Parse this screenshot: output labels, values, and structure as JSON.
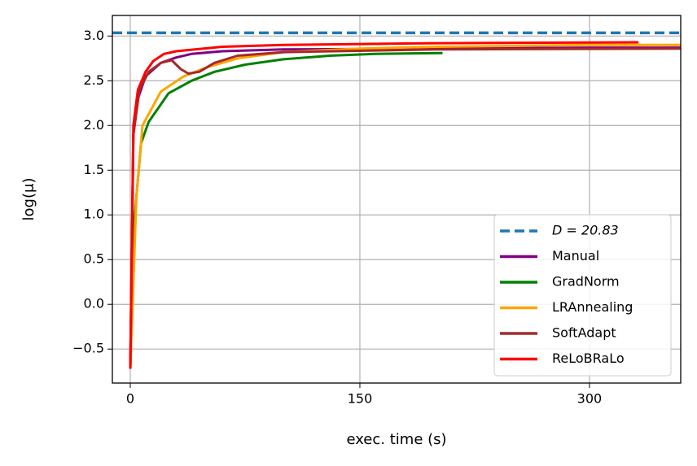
{
  "chart_data": {
    "type": "line",
    "xlabel": "exec. time (s)",
    "ylabel": "log(μ)",
    "xlim": [
      -11.7,
      359.6
    ],
    "ylim": [
      -0.88,
      3.23
    ],
    "xticks": [
      0,
      150,
      300
    ],
    "yticks": [
      {
        "value": -0.5,
        "label": "−0.5"
      },
      {
        "value": 0,
        "label": "0.0"
      },
      0.5,
      {
        "value": 1,
        "label": "1.0"
      },
      1.5,
      {
        "value": 2,
        "label": "2.0"
      },
      2.5,
      {
        "value": 3,
        "label": "3.0"
      }
    ],
    "grid": true,
    "legend": "lower right",
    "reference_line": {
      "name": "D = 20.83",
      "value": 3.036,
      "color": "#1f77b4"
    },
    "series": [
      {
        "name": "Manual",
        "color": "#800080",
        "x": [
          0,
          2,
          5,
          10,
          20,
          30,
          40,
          60,
          100,
          200,
          300,
          359.6
        ],
        "values": [
          -0.72,
          1.9,
          2.3,
          2.55,
          2.7,
          2.76,
          2.8,
          2.83,
          2.85,
          2.86,
          2.87,
          2.87
        ]
      },
      {
        "name": "GradNorm",
        "color": "#008000",
        "x": [
          0,
          3,
          7,
          12,
          25,
          40,
          55,
          75,
          100,
          130,
          160,
          204
        ],
        "values": [
          -0.72,
          1.0,
          1.8,
          2.04,
          2.36,
          2.5,
          2.6,
          2.68,
          2.74,
          2.78,
          2.8,
          2.81
        ]
      },
      {
        "name": "LRAnnealing",
        "color": "#ffa500",
        "x": [
          0,
          4,
          8,
          20,
          35,
          50,
          70,
          100,
          150,
          200,
          300,
          359.6
        ],
        "values": [
          -0.72,
          1.2,
          2.0,
          2.38,
          2.55,
          2.65,
          2.75,
          2.82,
          2.86,
          2.88,
          2.9,
          2.9
        ]
      },
      {
        "name": "SoftAdapt",
        "color": "#a52a2a",
        "x": [
          0,
          2,
          6,
          12,
          20,
          27,
          33,
          38,
          45,
          55,
          70,
          100,
          200,
          359.6
        ],
        "values": [
          -0.72,
          1.9,
          2.4,
          2.6,
          2.7,
          2.73,
          2.63,
          2.58,
          2.6,
          2.7,
          2.78,
          2.82,
          2.85,
          2.86
        ]
      },
      {
        "name": "ReLoBRaLo",
        "color": "#ff0000",
        "x": [
          0,
          2,
          5,
          10,
          15,
          22,
          30,
          60,
          100,
          200,
          332
        ],
        "values": [
          -0.72,
          2.0,
          2.4,
          2.6,
          2.72,
          2.8,
          2.83,
          2.88,
          2.9,
          2.92,
          2.93
        ]
      }
    ]
  }
}
